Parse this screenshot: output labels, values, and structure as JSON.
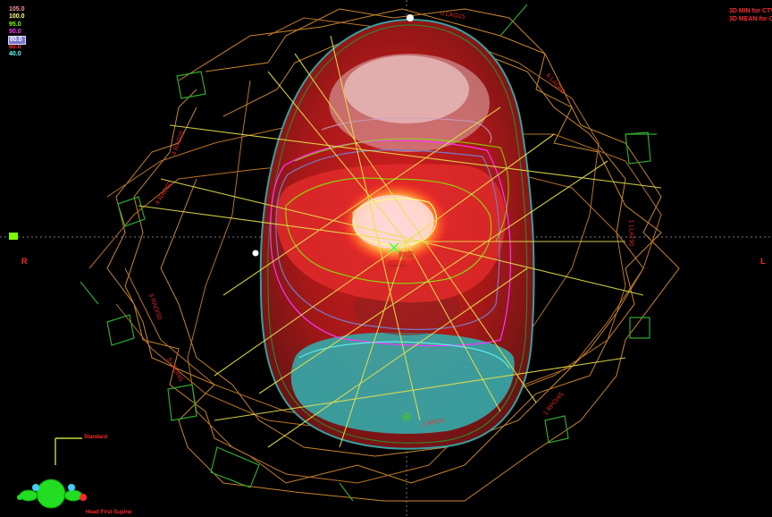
{
  "isodose_legend": [
    {
      "label": "105.0",
      "color": "#ff9a9a"
    },
    {
      "label": "100.0",
      "color": "#ffff80"
    },
    {
      "label": "95.0",
      "color": "#7cfc00"
    },
    {
      "label": "90.0",
      "color": "#ff33ff"
    },
    {
      "label": "80.0",
      "color": "#7a78c8",
      "selected": true
    },
    {
      "label": "60.0",
      "color": "#ff3030"
    },
    {
      "label": "40.0",
      "color": "#66ffff"
    }
  ],
  "stats": {
    "line1": "3D MIN for CTV: 72.0 %",
    "line2": "3D MEAN for CTV: 95.6"
  },
  "orientation": {
    "right": "R",
    "left": "L"
  },
  "beam_labels": [
    "0 LAO15",
    "6 LAO60",
    "1 LLAT90",
    "1 RPO/45",
    "4 RAO25",
    "3 RPO4",
    "4 RAO60",
    "3 RAO/50",
    "9 LPO/45",
    "5 RLAO/9"
  ],
  "point_labels": {
    "p1": "1ref1",
    "p2": "103.6"
  },
  "view_labels": {
    "standard": "Standard",
    "position": "Head First-Supine"
  },
  "colors": {
    "background": "#000000",
    "label_red": "#ff2a2a",
    "beam_gold": "#d4a040",
    "beam_yellow": "#e6e14a",
    "field_green": "#30c030",
    "teal": "#2fb3b3"
  }
}
